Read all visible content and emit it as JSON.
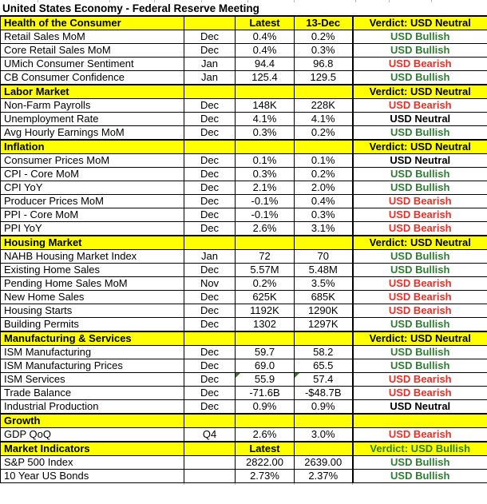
{
  "title": "United States Economy - Federal Reserve Meeting",
  "colors": {
    "section_bg": "#ffff00",
    "bullish": "#2e7d32",
    "bearish": "#ee2e24",
    "neutral": "#000000",
    "border": "#000000",
    "grid_tick": "#b7b7b7"
  },
  "sections": [
    {
      "name": "Health of the Consumer",
      "latest_header": "Latest",
      "prev_header": "13-Dec",
      "verdict": "Verdict: USD Neutral",
      "verdict_tone": "neutral",
      "rows": [
        {
          "label": "Retail Sales MoM",
          "month": "Dec",
          "latest": "0.4%",
          "prev": "0.2%",
          "verdict": "USD Bullish",
          "tone": "bullish"
        },
        {
          "label": "Core Retail Sales MoM",
          "month": "Dec",
          "latest": "0.4%",
          "prev": "0.3%",
          "verdict": "USD Bullish",
          "tone": "bullish"
        },
        {
          "label": "UMich Consumer Sentiment",
          "month": "Jan",
          "latest": "94.4",
          "prev": "96.8",
          "verdict": "USD Bearish",
          "tone": "bearish"
        },
        {
          "label": "CB Consumer Confidence",
          "month": "Jan",
          "latest": "125.4",
          "prev": "129.5",
          "verdict": "USD Bullish",
          "tone": "bullish"
        }
      ]
    },
    {
      "name": "Labor Market",
      "latest_header": "",
      "prev_header": "",
      "verdict": "Verdict: USD Neutral",
      "verdict_tone": "neutral",
      "rows": [
        {
          "label": "Non-Farm Payrolls",
          "month": "Dec",
          "latest": "148K",
          "prev": "228K",
          "verdict": "USD Bearish",
          "tone": "bearish"
        },
        {
          "label": "Unemployment Rate",
          "month": "Dec",
          "latest": "4.1%",
          "prev": "4.1%",
          "verdict": "USD Neutral",
          "tone": "neutral"
        },
        {
          "label": "Avg Hourly Earnings MoM",
          "month": "Dec",
          "latest": "0.3%",
          "prev": "0.2%",
          "verdict": "USD Bullish",
          "tone": "bullish"
        }
      ]
    },
    {
      "name": "Inflation",
      "latest_header": "",
      "prev_header": "",
      "verdict": "Verdict: USD Neutral",
      "verdict_tone": "neutral",
      "rows": [
        {
          "label": "Consumer Prices MoM",
          "month": "Dec",
          "latest": "0.1%",
          "prev": "0.1%",
          "verdict": "USD Neutral",
          "tone": "neutral"
        },
        {
          "label": "CPI - Core MoM",
          "month": "Dec",
          "latest": "0.3%",
          "prev": "0.2%",
          "verdict": "USD Bullish",
          "tone": "bullish"
        },
        {
          "label": "CPI YoY",
          "month": "Dec",
          "latest": "2.1%",
          "prev": "2.0%",
          "verdict": "USD Bullish",
          "tone": "bullish"
        },
        {
          "label": "Producer Prices MoM",
          "month": "Dec",
          "latest": "-0.1%",
          "prev": "0.4%",
          "verdict": "USD Bearish",
          "tone": "bearish"
        },
        {
          "label": "PPI - Core MoM",
          "month": "Dec",
          "latest": "-0.1%",
          "prev": "0.3%",
          "verdict": "USD Bearish",
          "tone": "bearish"
        },
        {
          "label": "PPI YoY",
          "month": "Dec",
          "latest": "2.6%",
          "prev": "3.1%",
          "verdict": "USD Bearish",
          "tone": "bearish"
        }
      ]
    },
    {
      "name": "Housing Market",
      "latest_header": "",
      "prev_header": "",
      "verdict": "Verdict: USD Neutral",
      "verdict_tone": "neutral",
      "rows": [
        {
          "label": "NAHB Housing Market Index",
          "month": "Jan",
          "latest": "72",
          "prev": "70",
          "verdict": "USD Bullish",
          "tone": "bullish"
        },
        {
          "label": "Existing Home Sales",
          "month": "Dec",
          "latest": "5.57M",
          "prev": "5.48M",
          "verdict": "USD Bullish",
          "tone": "bullish"
        },
        {
          "label": "Pending Home Sales MoM",
          "month": "Nov",
          "latest": "0.2%",
          "prev": "3.5%",
          "verdict": "USD Bearish",
          "tone": "bearish"
        },
        {
          "label": "New Home Sales",
          "month": "Dec",
          "latest": "625K",
          "prev": "685K",
          "verdict": "USD Bearish",
          "tone": "bearish"
        },
        {
          "label": "Housing Starts",
          "month": "Dec",
          "latest": "1192K",
          "prev": "1290K",
          "verdict": "USD Bearish",
          "tone": "bearish"
        },
        {
          "label": "Building Permits",
          "month": "Dec",
          "latest": "1302",
          "prev": "1297K",
          "verdict": "USD Bullish",
          "tone": "bullish"
        }
      ]
    },
    {
      "name": "Manufacturing & Services",
      "latest_header": "",
      "prev_header": "",
      "verdict": "Verdict: USD Neutral",
      "verdict_tone": "neutral",
      "rows": [
        {
          "label": "ISM Manufacturing",
          "month": "Dec",
          "latest": "59.7",
          "prev": "58.2",
          "verdict": "USD Bullish",
          "tone": "bullish"
        },
        {
          "label": "ISM Manufacturing Prices",
          "month": "Dec",
          "latest": "69.0",
          "prev": "65.5",
          "verdict": "USD Bullish",
          "tone": "bullish"
        },
        {
          "label": "ISM Services",
          "month": "Dec",
          "latest": "55.9",
          "prev": "57.4",
          "verdict": "USD Bearish",
          "tone": "bearish",
          "flag_latest": true,
          "flag_prev": true
        },
        {
          "label": "Trade Balance",
          "month": "Dec",
          "latest": "-71.6B",
          "prev": "-$48.7B",
          "verdict": "USD Bearish",
          "tone": "bearish"
        },
        {
          "label": "Industrial Production",
          "month": "Dec",
          "latest": "0.9%",
          "prev": "0.9%",
          "verdict": "USD Neutral",
          "tone": "neutral"
        }
      ]
    },
    {
      "name": "Growth",
      "latest_header": "",
      "prev_header": "",
      "verdict": "",
      "verdict_tone": "neutral",
      "rows": [
        {
          "label": "GDP QoQ",
          "month": "Q4",
          "latest": "2.6%",
          "prev": "3.0%",
          "verdict": "USD Bearish",
          "tone": "bearish"
        }
      ]
    },
    {
      "name": "Market Indicators",
      "latest_header": "Latest",
      "prev_header": "",
      "verdict": "Verdict: USD Bullish",
      "verdict_tone": "bullish",
      "rows": [
        {
          "label": "S&P 500 Index",
          "month": "",
          "latest": "2822.00",
          "prev": "2639.00",
          "verdict": "USD Bullish",
          "tone": "bullish"
        },
        {
          "label": "10 Year US Bonds",
          "month": "",
          "latest": "2.73%",
          "prev": "2.37%",
          "verdict": "USD Bullish",
          "tone": "bullish"
        }
      ]
    }
  ]
}
